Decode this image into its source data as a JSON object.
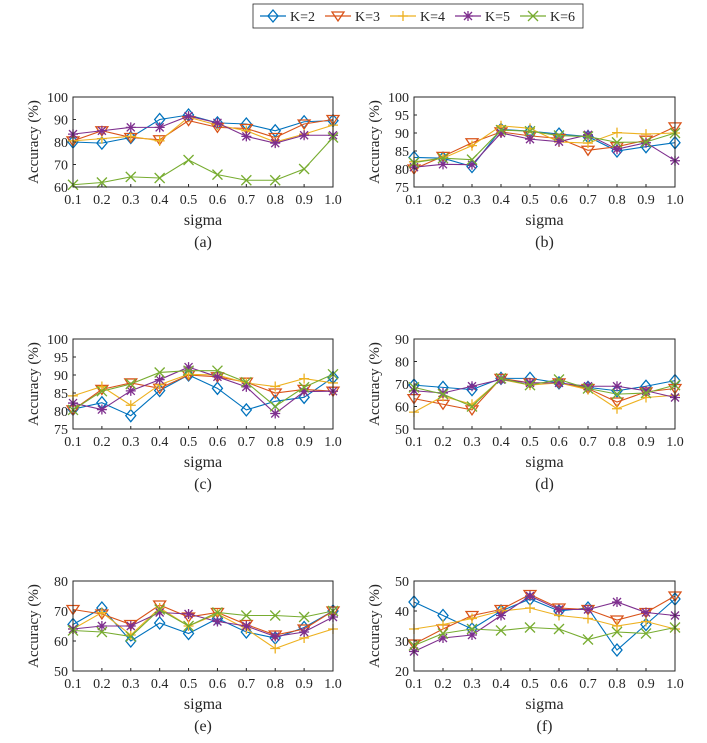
{
  "chart_data": {
    "type": "line",
    "legend": {
      "placement": "top-center",
      "entries": [
        {
          "name": "K=2",
          "color": "#0072BD",
          "marker": "diamond"
        },
        {
          "name": "K=3",
          "color": "#D95319",
          "marker": "triangle-down"
        },
        {
          "name": "K=4",
          "color": "#EDB120",
          "marker": "plus"
        },
        {
          "name": "K=5",
          "color": "#7E2F8E",
          "marker": "asterisk"
        },
        {
          "name": "K=6",
          "color": "#77AC30",
          "marker": "x"
        }
      ]
    },
    "x": [
      0.1,
      0.2,
      0.3,
      0.4,
      0.5,
      0.6,
      0.7,
      0.8,
      0.9,
      1.0
    ],
    "x_tick_labels": [
      "0.1",
      "0.2",
      "0.3",
      "0.4",
      "0.5",
      "0.6",
      "0.7",
      "0.8",
      "0.9",
      "1.0"
    ],
    "panels": [
      {
        "caption": "(a)",
        "xlabel": "sigma",
        "ylabel": "Accuracy (%)",
        "ylim": [
          60,
          100
        ],
        "yticks": [
          60,
          70,
          80,
          90,
          100
        ],
        "series": [
          {
            "name": "K=2",
            "values": [
              80,
              79.5,
              82,
              90,
              92,
              88.5,
              88,
              85,
              89,
              89.5
            ]
          },
          {
            "name": "K=3",
            "values": [
              80.5,
              85,
              82,
              81,
              89.5,
              86.5,
              86,
              82,
              88,
              90
            ]
          },
          {
            "name": "K=4",
            "values": [
              80.5,
              81.5,
              82.5,
              80.5,
              91,
              87.5,
              85,
              80,
              83.5,
              87.5
            ]
          },
          {
            "name": "K=5",
            "values": [
              83.5,
              85,
              86.5,
              86.5,
              91.5,
              88.5,
              82.5,
              79.5,
              83,
              83
            ]
          },
          {
            "name": "K=6",
            "values": [
              61,
              62,
              64.5,
              64,
              72,
              65.5,
              63,
              63,
              68,
              82
            ]
          }
        ]
      },
      {
        "caption": "(b)",
        "xlabel": "sigma",
        "ylabel": "Accuracy (%)",
        "ylim": [
          75,
          100
        ],
        "yticks": [
          75,
          80,
          85,
          90,
          95,
          100
        ],
        "series": [
          {
            "name": "K=2",
            "values": [
              83.2,
              83,
              80.7,
              91,
              90.5,
              89.7,
              89,
              85,
              86.2,
              87.3
            ]
          },
          {
            "name": "K=3",
            "values": [
              80,
              83.5,
              87.3,
              90.3,
              89.2,
              88.5,
              85.2,
              86.2,
              88,
              91.7
            ]
          },
          {
            "name": "K=4",
            "values": [
              82,
              83,
              86.5,
              92,
              91.3,
              87.5,
              87.2,
              90.1,
              89.7,
              90
            ]
          },
          {
            "name": "K=5",
            "values": [
              80.5,
              81.3,
              81.2,
              90,
              88.3,
              87.6,
              89.5,
              85.5,
              87.3,
              82.3
            ]
          },
          {
            "name": "K=6",
            "values": [
              81.8,
              83,
              82.6,
              90.8,
              90.5,
              89.3,
              89,
              87.4,
              87.5,
              90
            ]
          }
        ]
      },
      {
        "caption": "(c)",
        "xlabel": "sigma",
        "ylabel": "Accuracy (%)",
        "ylim": [
          75,
          100
        ],
        "yticks": [
          75,
          80,
          85,
          90,
          95,
          100
        ],
        "series": [
          {
            "name": "K=2",
            "values": [
              80.5,
              82.3,
              78.7,
              85.7,
              90,
              86.3,
              80.3,
              82.7,
              83.8,
              89.3
            ]
          },
          {
            "name": "K=3",
            "values": [
              80.3,
              86,
              87.8,
              86.3,
              90,
              89.5,
              88,
              85,
              86,
              85.5
            ]
          },
          {
            "name": "K=4",
            "values": [
              84.2,
              86.8,
              81.6,
              87.3,
              90.2,
              90,
              87.8,
              86.8,
              89,
              87.8
            ]
          },
          {
            "name": "K=5",
            "values": [
              82.2,
              80.4,
              85.6,
              88.7,
              92.2,
              89.5,
              86.7,
              79.3,
              85.4,
              85.5
            ]
          },
          {
            "name": "K=6",
            "values": [
              80.3,
              85.5,
              87.5,
              90.7,
              91.2,
              91.2,
              88,
              81.3,
              86.6,
              90.2
            ]
          }
        ]
      },
      {
        "caption": "(d)",
        "xlabel": "sigma",
        "ylabel": "Accuracy (%)",
        "ylim": [
          50,
          90
        ],
        "yticks": [
          50,
          60,
          70,
          80,
          90
        ],
        "series": [
          {
            "name": "K=2",
            "values": [
              69.5,
              68.5,
              67.5,
              72.5,
              72.5,
              70.5,
              68.5,
              67,
              69,
              71.5
            ]
          },
          {
            "name": "K=3",
            "values": [
              63.5,
              61,
              58.5,
              72.5,
              70.5,
              70.5,
              68,
              62,
              66.5,
              68
            ]
          },
          {
            "name": "K=4",
            "values": [
              57.5,
              64.5,
              61,
              72,
              69.5,
              70.5,
              67.5,
              59,
              64,
              65
            ]
          },
          {
            "name": "K=5",
            "values": [
              67,
              66,
              69,
              72,
              70.5,
              70.5,
              69,
              69,
              67,
              64
            ]
          },
          {
            "name": "K=6",
            "values": [
              68.5,
              65.5,
              60,
              72.5,
              69.5,
              72,
              68,
              65.5,
              66,
              69.5
            ]
          }
        ]
      },
      {
        "caption": "(e)",
        "xlabel": "sigma",
        "ylabel": "Accuracy (%)",
        "ylim": [
          50,
          80
        ],
        "yticks": [
          50,
          60,
          70,
          80
        ],
        "series": [
          {
            "name": "K=2",
            "values": [
              65.5,
              71,
              60,
              66,
              62.5,
              67.5,
              63,
              61,
              64.5,
              70
            ]
          },
          {
            "name": "K=3",
            "values": [
              70.5,
              69,
              65.5,
              72,
              68,
              69.5,
              65.5,
              62,
              64,
              70
            ]
          },
          {
            "name": "K=4",
            "values": [
              64,
              69.5,
              62,
              71,
              65,
              69,
              64,
              57.5,
              61,
              64
            ]
          },
          {
            "name": "K=5",
            "values": [
              64,
              65,
              65,
              69.5,
              69,
              66.5,
              65,
              61.5,
              63,
              68
            ]
          },
          {
            "name": "K=6",
            "values": [
              63.5,
              63,
              61.5,
              70.5,
              65,
              69.5,
              68.5,
              68.5,
              68,
              70
            ]
          }
        ]
      },
      {
        "caption": "(f)",
        "xlabel": "sigma",
        "ylabel": "Accuracy (%)",
        "ylim": [
          20,
          50
        ],
        "yticks": [
          20,
          30,
          40,
          50
        ],
        "series": [
          {
            "name": "K=2",
            "values": [
              43,
              38.5,
              34,
              40,
              44,
              40,
              41,
              27,
              35.5,
              44
            ]
          },
          {
            "name": "K=3",
            "values": [
              29,
              34,
              38.5,
              40.5,
              45.5,
              41,
              40.5,
              37,
              39.5,
              45
            ]
          },
          {
            "name": "K=4",
            "values": [
              34,
              35.5,
              37.5,
              40,
              41,
              38.5,
              37.5,
              35,
              36.5,
              34
            ]
          },
          {
            "name": "K=5",
            "values": [
              26.5,
              31,
              32,
              38.5,
              45,
              40.5,
              40.5,
              43,
              39.5,
              38.5
            ]
          },
          {
            "name": "K=6",
            "values": [
              28.5,
              32.5,
              34,
              33.5,
              34.5,
              34,
              30.5,
              33,
              32.5,
              34.5
            ]
          }
        ]
      }
    ]
  }
}
